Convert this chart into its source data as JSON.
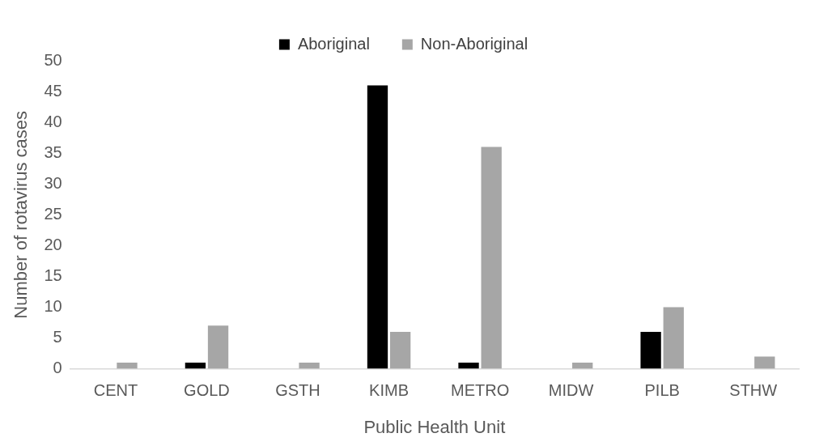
{
  "chart_data": {
    "type": "bar",
    "xlabel": "Public Health Unit",
    "ylabel": "Number of rotavirus cases",
    "categories": [
      "CENT",
      "GOLD",
      "GSTH",
      "KIMB",
      "METRO",
      "MIDW",
      "PILB",
      "STHW"
    ],
    "series": [
      {
        "name": "Aboriginal",
        "color": "#000000",
        "values": [
          0,
          1,
          0,
          46,
          1,
          0,
          6,
          0
        ]
      },
      {
        "name": "Non-Aboriginal",
        "color": "#a6a6a6",
        "values": [
          1,
          7,
          1,
          6,
          36,
          1,
          10,
          2
        ]
      }
    ],
    "ylim": [
      0,
      50
    ],
    "yticks": [
      0,
      5,
      10,
      15,
      20,
      25,
      30,
      35,
      40,
      45,
      50
    ],
    "grid": false,
    "legend": "top"
  }
}
